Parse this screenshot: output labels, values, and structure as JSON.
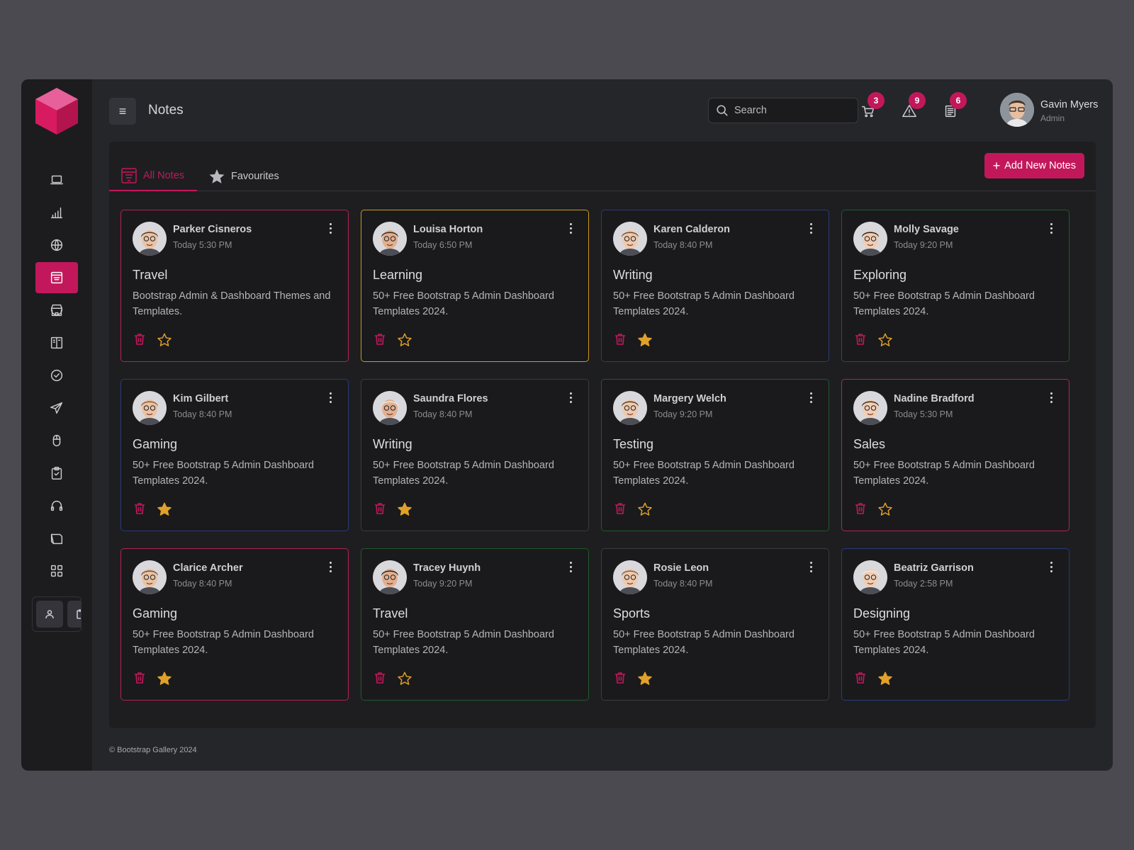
{
  "header": {
    "title": "Notes",
    "search_placeholder": "Search",
    "cart_count": "3",
    "alerts_count": "9",
    "messages_count": "6",
    "user_name": "Gavin Myers",
    "user_role": "Admin"
  },
  "tabs": {
    "all_notes": "All Notes",
    "favourites": "Favourites"
  },
  "add_button": "Add New Notes",
  "footer": "© Bootstrap Gallery 2024",
  "colors": {
    "accent": "#c2185b",
    "star": "#e0a12a",
    "border_red": "#b0244f",
    "border_yellow": "#c99a1c",
    "border_blue": "#283a7a",
    "border_green": "#1f5a2a",
    "border_gray": "#3a3a40"
  },
  "sidebar_icons": [
    "laptop-icon",
    "bar-chart-icon",
    "globe-icon",
    "notes-icon",
    "store-icon",
    "book-icon",
    "check-circle-icon",
    "send-icon",
    "mouse-icon",
    "clipboard-icon",
    "headphones-icon",
    "sticky-note-icon",
    "grid-icon"
  ],
  "notes": [
    {
      "name": "Parker Cisneros",
      "time": "Today 5:30 PM",
      "title": "Travel",
      "desc": "Bootstrap Admin & Dashboard Themes and Templates.",
      "favourite": false,
      "border": "red"
    },
    {
      "name": "Louisa Horton",
      "time": "Today 6:50 PM",
      "title": "Learning",
      "desc": "50+ Free Bootstrap 5 Admin Dashboard Templates 2024.",
      "favourite": false,
      "border": "yellow"
    },
    {
      "name": "Karen Calderon",
      "time": "Today 8:40 PM",
      "title": "Writing",
      "desc": "50+ Free Bootstrap 5 Admin Dashboard Templates 2024.",
      "favourite": true,
      "border": "blue"
    },
    {
      "name": "Molly Savage",
      "time": "Today 9:20 PM",
      "title": "Exploring",
      "desc": "50+ Free Bootstrap 5 Admin Dashboard Templates 2024.",
      "favourite": false,
      "border": "green"
    },
    {
      "name": "Kim Gilbert",
      "time": "Today 8:40 PM",
      "title": "Gaming",
      "desc": "50+ Free Bootstrap 5 Admin Dashboard Templates 2024.",
      "favourite": true,
      "border": "blue"
    },
    {
      "name": "Saundra Flores",
      "time": "Today 8:40 PM",
      "title": "Writing",
      "desc": "50+ Free Bootstrap 5 Admin Dashboard Templates 2024.",
      "favourite": true,
      "border": "gray"
    },
    {
      "name": "Margery Welch",
      "time": "Today 9:20 PM",
      "title": "Testing",
      "desc": "50+ Free Bootstrap 5 Admin Dashboard Templates 2024.",
      "favourite": false,
      "border": "green"
    },
    {
      "name": "Nadine Bradford",
      "time": "Today 5:30 PM",
      "title": "Sales",
      "desc": "50+ Free Bootstrap 5 Admin Dashboard Templates 2024.",
      "favourite": false,
      "border": "red"
    },
    {
      "name": "Clarice Archer",
      "time": "Today 8:40 PM",
      "title": "Gaming",
      "desc": "50+ Free Bootstrap 5 Admin Dashboard Templates 2024.",
      "favourite": true,
      "border": "red"
    },
    {
      "name": "Tracey Huynh",
      "time": "Today 9:20 PM",
      "title": "Travel",
      "desc": "50+ Free Bootstrap 5 Admin Dashboard Templates 2024.",
      "favourite": false,
      "border": "green"
    },
    {
      "name": "Rosie Leon",
      "time": "Today 8:40 PM",
      "title": "Sports",
      "desc": "50+ Free Bootstrap 5 Admin Dashboard Templates 2024.",
      "favourite": true,
      "border": "gray"
    },
    {
      "name": "Beatriz Garrison",
      "time": "Today 2:58 PM",
      "title": "Designing",
      "desc": "50+ Free Bootstrap 5 Admin Dashboard Templates 2024.",
      "favourite": true,
      "border": "blue"
    }
  ]
}
